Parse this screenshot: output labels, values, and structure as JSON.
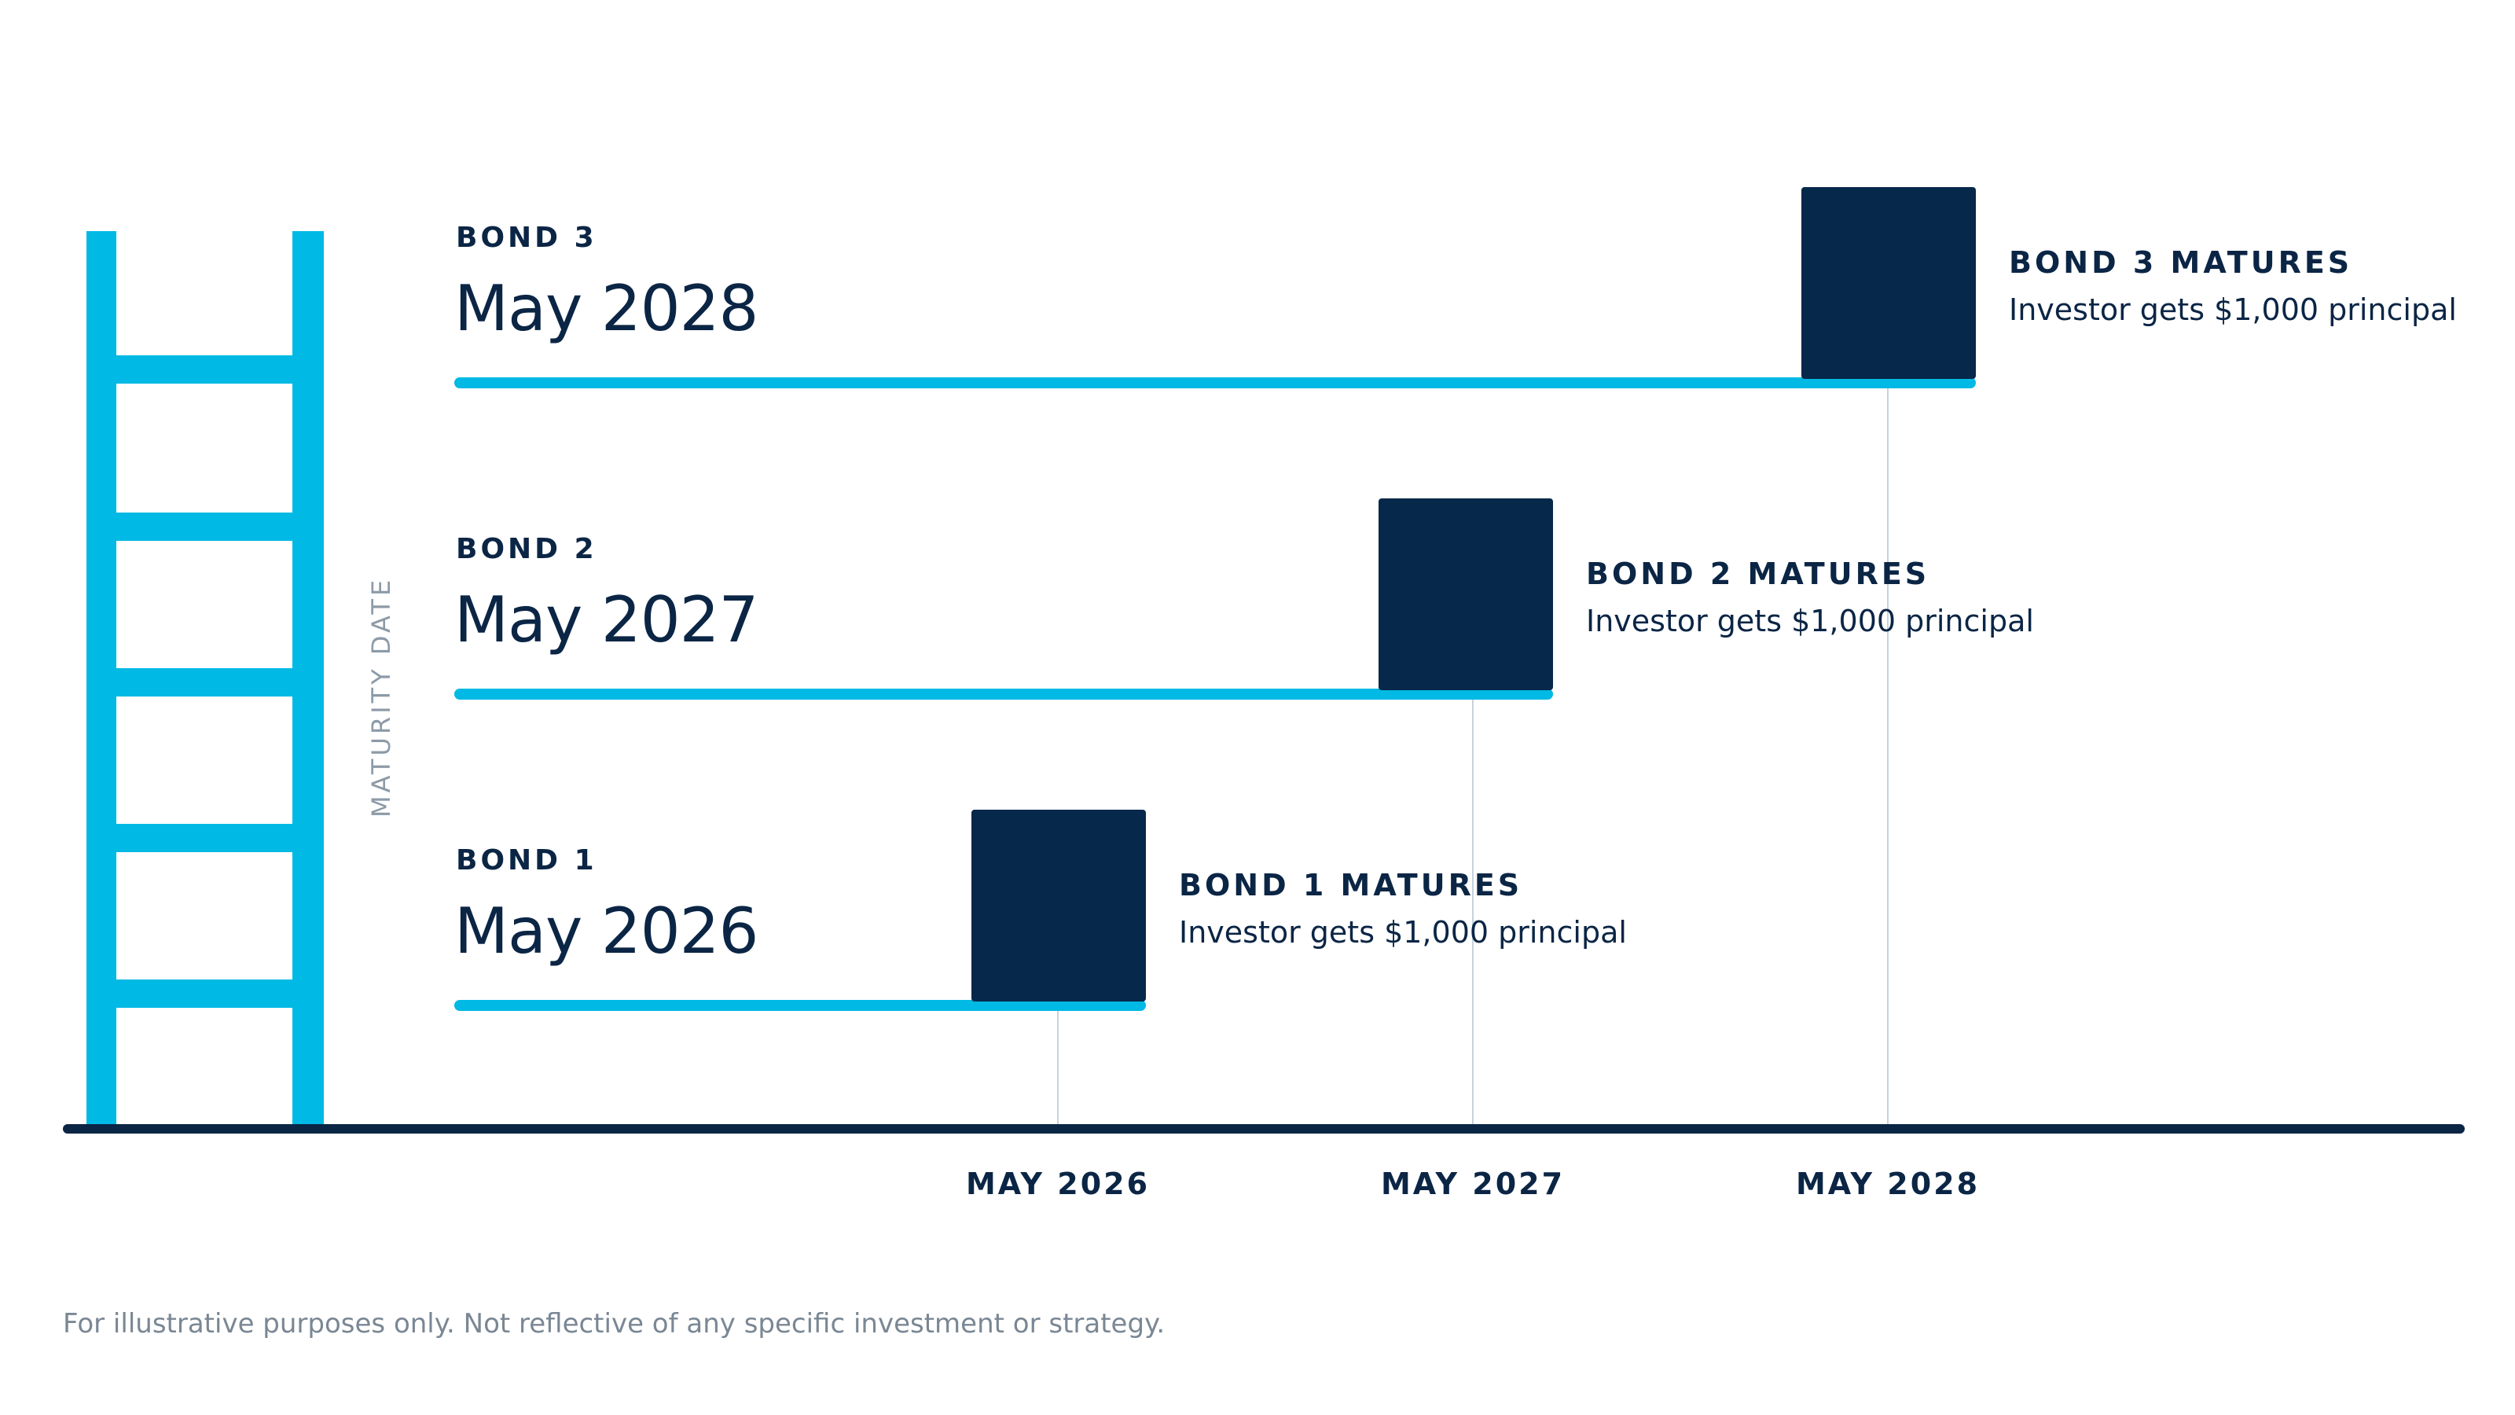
{
  "chart_data": {
    "type": "timeline",
    "ylabel": "MATURITY DATE",
    "x_ticks": [
      "MAY 2026",
      "MAY 2027",
      "MAY 2028"
    ],
    "bonds": [
      {
        "name": "BOND 3",
        "maturity": "May 2028",
        "matures_label": "BOND 3 MATURES",
        "matures_desc": "Investor gets $1,000 principal"
      },
      {
        "name": "BOND 2",
        "maturity": "May 2027",
        "matures_label": "BOND 2 MATURES",
        "matures_desc": "Investor gets $1,000 principal"
      },
      {
        "name": "BOND 1",
        "maturity": "May 2026",
        "matures_label": "BOND 1 MATURES",
        "matures_desc": "Investor gets $1,000 principal"
      }
    ]
  },
  "colors": {
    "accent": "#00b9e4",
    "navy": "#06284a",
    "muted": "#8c9aa8"
  },
  "footnote": "For illustrative purposes only. Not reflective of any specific investment or strategy."
}
